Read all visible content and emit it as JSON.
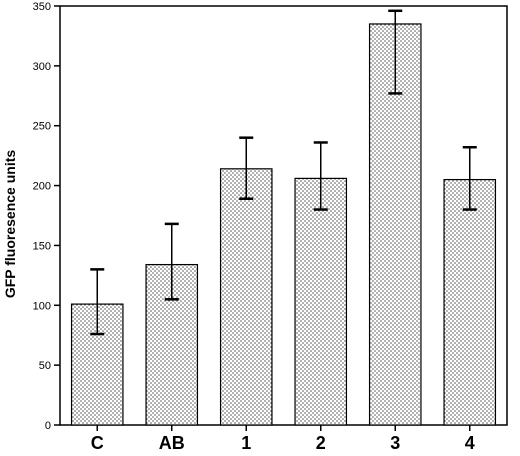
{
  "chart_data": {
    "type": "bar",
    "title": "",
    "xlabel": "",
    "ylabel": "GFP fluoresence units",
    "ylim": [
      0,
      350
    ],
    "yticks": [
      0,
      50,
      100,
      150,
      200,
      250,
      300,
      350
    ],
    "categories": [
      "C",
      "AB",
      "1",
      "2",
      "3",
      "4"
    ],
    "values": [
      101,
      134,
      214,
      206,
      335,
      205
    ],
    "error_lower": [
      76,
      105,
      189,
      180,
      277,
      180
    ],
    "error_upper": [
      130,
      168,
      240,
      236,
      346,
      232
    ],
    "bar_fill": "stippled light gray",
    "grid": false,
    "legend": "none"
  }
}
